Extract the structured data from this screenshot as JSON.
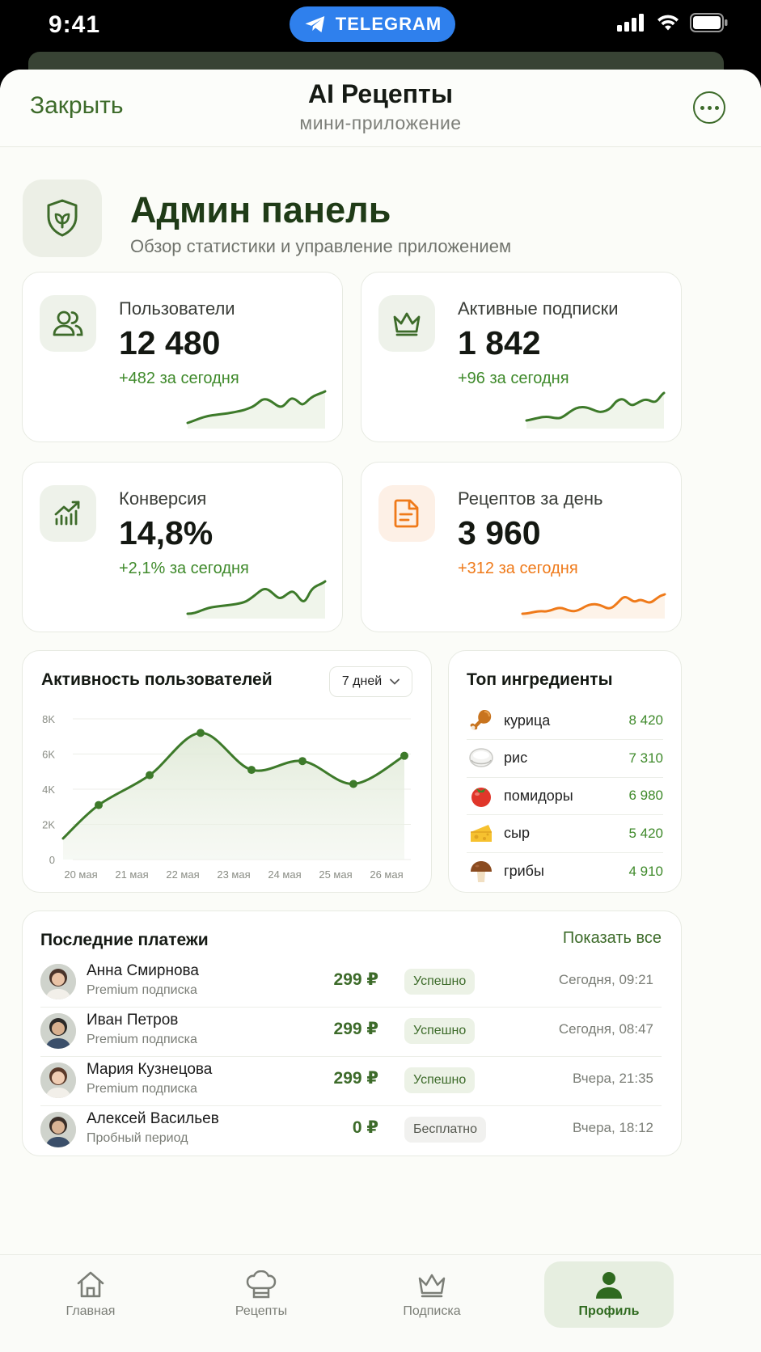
{
  "status": {
    "time": "9:41",
    "center_label": "TELEGRAM"
  },
  "topbar": {
    "close_label": "Закрыть",
    "title": "AI Рецепты",
    "subtitle": "мини-приложение"
  },
  "header": {
    "title": "Админ панель",
    "subtitle": "Обзор статистики и управление приложением"
  },
  "stats": [
    {
      "label": "Пользователи",
      "value": "12 480",
      "delta": "+482 за сегодня",
      "icon": "users-icon"
    },
    {
      "label": "Активные подписки",
      "value": "1 842",
      "delta": "+96 за сегодня",
      "icon": "crown-icon"
    },
    {
      "label": "Конверсия",
      "value": "14,8%",
      "delta": "+2,1% за сегодня",
      "icon": "chart-up-icon"
    },
    {
      "label": "Рецептов за день",
      "value": "3 960",
      "delta": "+312 за сегодня",
      "icon": "document-icon"
    }
  ],
  "activity": {
    "title": "Активность пользователей",
    "range_label": "7 дней"
  },
  "chart_data": {
    "type": "area",
    "categories": [
      "20 мая",
      "21 мая",
      "22 мая",
      "23 мая",
      "24 мая",
      "25 мая",
      "26 мая"
    ],
    "values": [
      3100,
      4800,
      7200,
      5100,
      5600,
      4300,
      5900
    ],
    "y_ticks": [
      "0",
      "2K",
      "4K",
      "6K",
      "8K"
    ],
    "ylim": [
      0,
      8000
    ],
    "grid": true,
    "color": "#3d7a2a"
  },
  "ingredients": {
    "title": "Топ ингредиенты",
    "items": [
      {
        "name": "курица",
        "count": "8 420",
        "icon": "chicken-leg-icon"
      },
      {
        "name": "рис",
        "count": "7 310",
        "icon": "rice-bowl-icon"
      },
      {
        "name": "помидоры",
        "count": "6 980",
        "icon": "tomato-icon"
      },
      {
        "name": "сыр",
        "count": "5 420",
        "icon": "cheese-icon"
      },
      {
        "name": "грибы",
        "count": "4 910",
        "icon": "mushroom-icon"
      }
    ]
  },
  "payments": {
    "title": "Последние платежи",
    "show_all": "Показать все",
    "rows": [
      {
        "name": "Анна Смирнова",
        "plan": "Premium подписка",
        "amount": "299 ₽",
        "status": "Успешно",
        "date": "Сегодня, 09:21"
      },
      {
        "name": "Иван Петров",
        "plan": "Premium подписка",
        "amount": "299 ₽",
        "status": "Успешно",
        "date": "Сегодня, 08:47"
      },
      {
        "name": "Мария Кузнецова",
        "plan": "Premium подписка",
        "amount": "299 ₽",
        "status": "Успешно",
        "date": "Вчера, 21:35"
      },
      {
        "name": "Алексей Васильев",
        "plan": "Пробный период",
        "amount": "0 ₽",
        "status": "Бесплатно",
        "date": "Вчера, 18:12"
      }
    ]
  },
  "nav": [
    {
      "label": "Главная",
      "icon": "home-icon"
    },
    {
      "label": "Рецепты",
      "icon": "chef-hat-icon"
    },
    {
      "label": "Подписка",
      "icon": "crown-icon"
    },
    {
      "label": "Профиль",
      "icon": "profile-icon",
      "active": true
    }
  ],
  "colors": {
    "accent": "#3d6b2a",
    "positive": "#3f8a2b",
    "orange": "#ef7a1a"
  }
}
